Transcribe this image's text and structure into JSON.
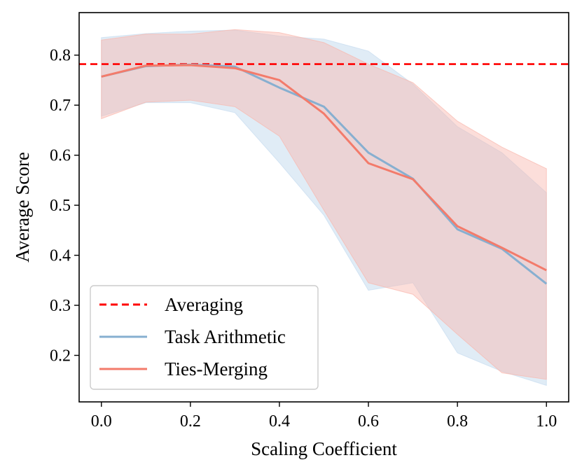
{
  "chart_data": {
    "type": "line",
    "title": "",
    "xlabel": "Scaling Coefficient",
    "ylabel": "Average Score",
    "xlim": [
      -0.05,
      1.05
    ],
    "ylim": [
      0.107,
      0.885
    ],
    "xticks": [
      0.0,
      0.2,
      0.4,
      0.6,
      0.8,
      1.0
    ],
    "xtick_labels": [
      "0.0",
      "0.2",
      "0.4",
      "0.6",
      "0.8",
      "1.0"
    ],
    "yticks": [
      0.2,
      0.3,
      0.4,
      0.5,
      0.6,
      0.7,
      0.8
    ],
    "ytick_labels": [
      "0.2",
      "0.3",
      "0.4",
      "0.5",
      "0.6",
      "0.7",
      "0.8"
    ],
    "grid": false,
    "legend_position": "lower-left",
    "reference_lines": [
      {
        "name": "Averaging",
        "y": 0.782,
        "color": "#ff0000",
        "style": "dashed"
      }
    ],
    "x": [
      0.0,
      0.1,
      0.2,
      0.3,
      0.4,
      0.5,
      0.6,
      0.7,
      0.8,
      0.9,
      1.0
    ],
    "series": [
      {
        "name": "Task Arithmetic",
        "color": "#87afd0",
        "band_color": "#c6dcef",
        "values": [
          0.757,
          0.778,
          0.781,
          0.777,
          0.735,
          0.697,
          0.605,
          0.553,
          0.452,
          0.413,
          0.343
        ],
        "upper": [
          0.835,
          0.843,
          0.848,
          0.85,
          0.838,
          0.832,
          0.808,
          0.742,
          0.657,
          0.605,
          0.525
        ],
        "lower": [
          0.678,
          0.705,
          0.705,
          0.685,
          0.585,
          0.48,
          0.33,
          0.345,
          0.205,
          0.168,
          0.14
        ]
      },
      {
        "name": "Ties-Merging",
        "color": "#f37b6b",
        "band_color": "#f9b6ac",
        "values": [
          0.757,
          0.779,
          0.78,
          0.774,
          0.75,
          0.683,
          0.584,
          0.552,
          0.458,
          0.415,
          0.37
        ],
        "upper": [
          0.83,
          0.842,
          0.842,
          0.851,
          0.845,
          0.825,
          0.782,
          0.745,
          0.668,
          0.616,
          0.573
        ],
        "lower": [
          0.673,
          0.706,
          0.71,
          0.697,
          0.638,
          0.49,
          0.345,
          0.322,
          0.242,
          0.165,
          0.152
        ]
      }
    ],
    "legend": [
      "Averaging",
      "Task Arithmetic",
      "Ties-Merging"
    ]
  }
}
